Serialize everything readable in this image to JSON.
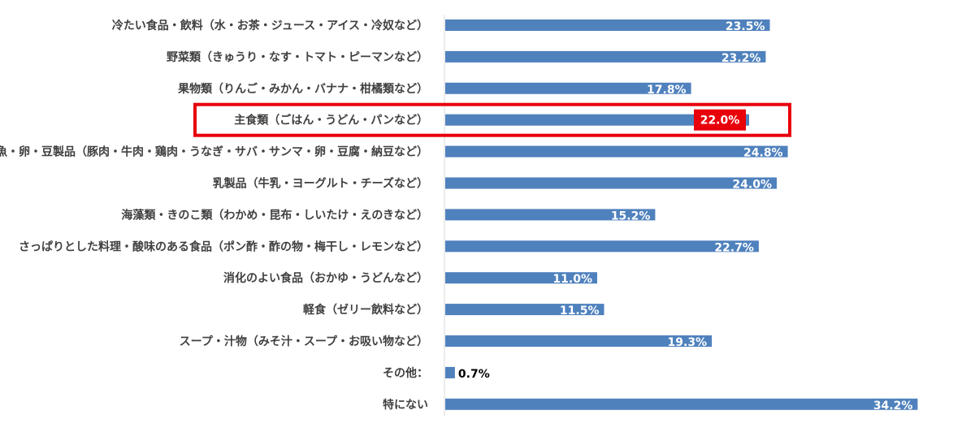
{
  "chart_data": {
    "type": "bar",
    "orientation": "horizontal",
    "categories": [
      "冷たい食品・飲料（水・お茶・ジュース・アイス・冷奴など）",
      "野菜類（きゅうり・なす・トマト・ピーマンなど）",
      "果物類（りんご・みかん・バナナ・柑橘類など）",
      "主食類（ごはん・うどん・パンなど）",
      "肉・魚・卵・豆製品（豚肉・牛肉・鶏肉・うなぎ・サバ・サンマ・卵・豆腐・納豆など）",
      "乳製品（牛乳・ヨーグルト・チーズなど）",
      "海藻類・きのこ類（わかめ・昆布・しいたけ・えのきなど）",
      "さっぱりとした料理・酸味のある食品（ポン酢・酢の物・梅干し・レモンなど）",
      "消化のよい食品（おかゆ・うどんなど）",
      "軽食（ゼリー飲料など）",
      "スープ・汁物（みそ汁・スープ・お吸い物など）",
      "その他：",
      "特にない"
    ],
    "values": [
      23.5,
      23.2,
      17.8,
      22.0,
      24.8,
      24.0,
      15.2,
      22.7,
      11.0,
      11.5,
      19.3,
      0.7,
      34.2
    ],
    "value_labels": [
      "23.5%",
      "23.2%",
      "17.8%",
      "22.0%",
      "24.8%",
      "24.0%",
      "15.2%",
      "22.7%",
      "11.0%",
      "11.5%",
      "19.3%",
      "0.7%",
      "34.2%"
    ],
    "unit": "%",
    "xlim": [
      0,
      38
    ],
    "grid": false,
    "highlight_index": 3,
    "colors": {
      "bar": "#4f81bd",
      "highlight": "#e8000b",
      "axis": "#d9d9d9",
      "label": "#404040"
    }
  }
}
